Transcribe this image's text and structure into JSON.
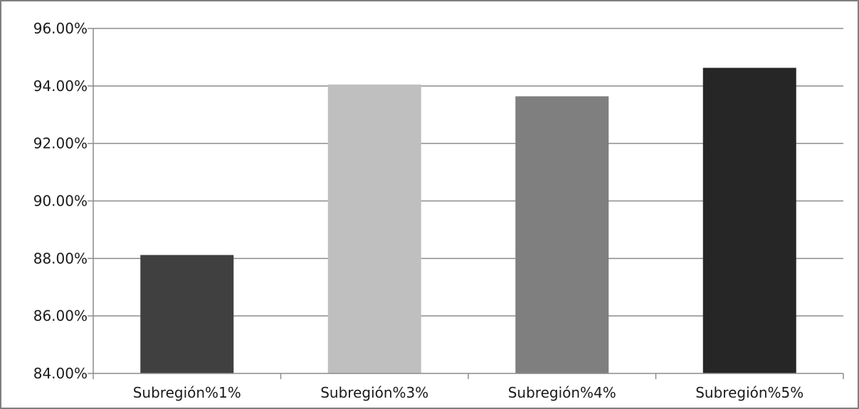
{
  "chart_data": {
    "type": "bar",
    "categories": [
      "Subregión%1%",
      "Subregión%3%",
      "Subregión%4%",
      "Subregión%5%"
    ],
    "values": [
      88.12,
      94.05,
      93.64,
      94.63
    ],
    "colors": [
      "#404040",
      "#bfbfbf",
      "#7f7f7f",
      "#262626"
    ],
    "ylim": [
      84,
      96
    ],
    "yticks": [
      84,
      86,
      88,
      90,
      92,
      94,
      96
    ],
    "ytick_labels": [
      "84.00%",
      "86.00%",
      "88.00%",
      "90.00%",
      "92.00%",
      "94.00%",
      "96.00%"
    ],
    "grid": true,
    "title": "",
    "xlabel": "",
    "ylabel": ""
  }
}
